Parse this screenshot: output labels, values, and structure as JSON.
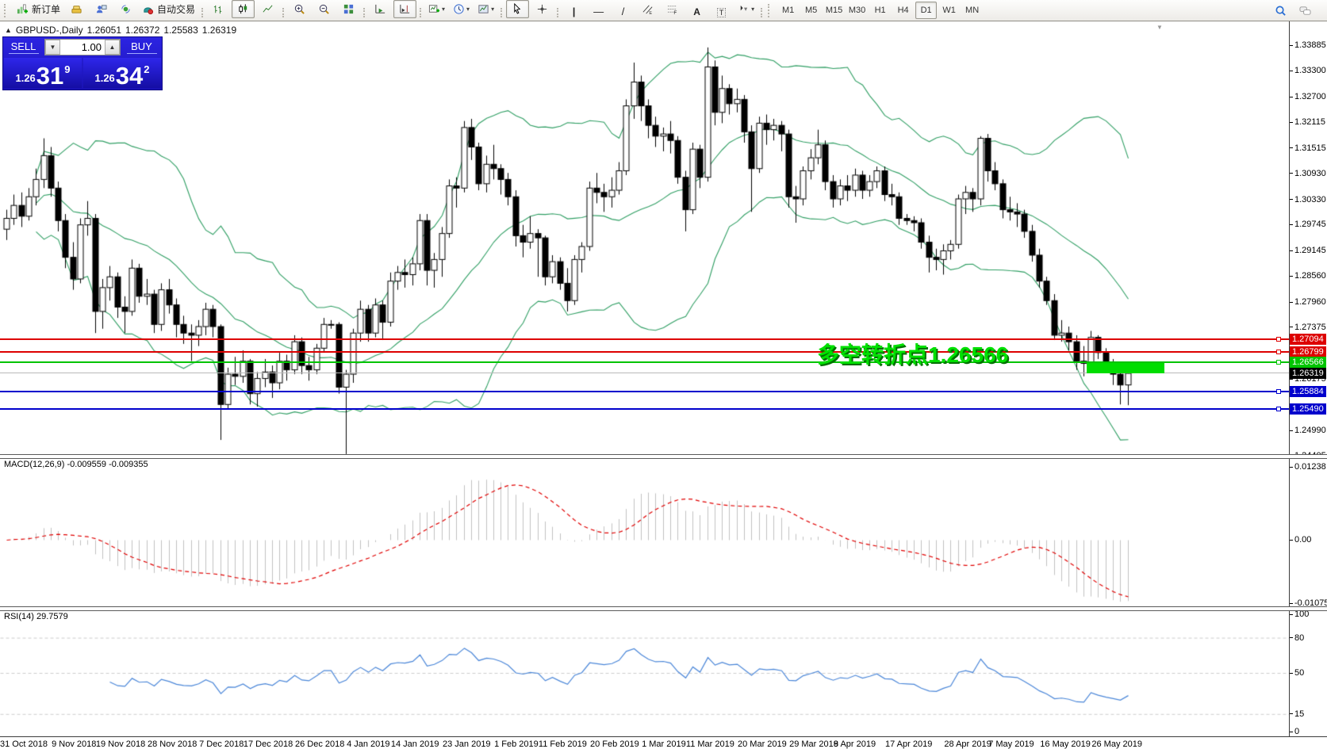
{
  "toolbar": {
    "buttons": [
      {
        "name": "new-order-button",
        "icon": "new-order-icon",
        "label": "新订单"
      },
      {
        "name": "metaeditor-button",
        "icon": "metaeditor-icon"
      },
      {
        "name": "profile-button",
        "icon": "profile-icon"
      },
      {
        "name": "signals-button",
        "icon": "signals-icon"
      },
      {
        "name": "autotrading-button",
        "icon": "autotrading-icon",
        "label": "自动交易"
      },
      {
        "sep": true
      },
      {
        "name": "bar-chart-button",
        "icon": "bar-chart-icon"
      },
      {
        "name": "candlestick-chart-button",
        "icon": "candlestick-icon",
        "active": true
      },
      {
        "name": "line-chart-button",
        "icon": "line-chart-icon"
      },
      {
        "sep": true
      },
      {
        "name": "zoom-in-button",
        "icon": "zoom-in-icon"
      },
      {
        "name": "zoom-out-button",
        "icon": "zoom-out-icon"
      },
      {
        "name": "tile-windows-button",
        "icon": "tile-windows-icon"
      },
      {
        "sep": true
      },
      {
        "name": "auto-scroll-button",
        "icon": "auto-scroll-icon"
      },
      {
        "name": "chart-shift-button",
        "icon": "chart-shift-icon",
        "active": true
      },
      {
        "sep": true
      },
      {
        "name": "new-chart-button",
        "icon": "new-chart-icon",
        "dropdown": true
      },
      {
        "name": "periods-button",
        "icon": "clock-icon",
        "dropdown": true
      },
      {
        "name": "templates-button",
        "icon": "template-icon",
        "dropdown": true
      },
      {
        "sep": true
      },
      {
        "name": "cursor-button",
        "icon": "cursor-icon",
        "active": true
      },
      {
        "name": "crosshair-button",
        "icon": "crosshair-icon"
      },
      {
        "sep": true
      },
      {
        "name": "vertical-line-button",
        "icon": "vline-icon"
      },
      {
        "name": "horizontal-line-button",
        "icon": "hline-icon"
      },
      {
        "name": "trendline-button",
        "icon": "trendline-icon"
      },
      {
        "name": "channel-button",
        "icon": "channel-icon"
      },
      {
        "name": "fibonacci-button",
        "icon": "fibo-icon"
      },
      {
        "name": "text-button",
        "icon": "text-icon"
      },
      {
        "name": "label-button",
        "icon": "label-icon"
      },
      {
        "name": "arrows-button",
        "icon": "arrows-icon",
        "dropdown": true
      },
      {
        "sep": true
      }
    ],
    "timeframes": [
      {
        "label": "M1"
      },
      {
        "label": "M5"
      },
      {
        "label": "M15"
      },
      {
        "label": "M30"
      },
      {
        "label": "H1"
      },
      {
        "label": "H4"
      },
      {
        "label": "D1",
        "active": true
      },
      {
        "label": "W1"
      },
      {
        "label": "MN"
      }
    ],
    "right_buttons": [
      {
        "name": "search-button",
        "icon": "search-icon"
      },
      {
        "name": "chat-button",
        "icon": "chat-icon"
      }
    ]
  },
  "symbol_header": {
    "symbol": "GBPUSD-,Daily",
    "open": "1.26051",
    "high": "1.26372",
    "low": "1.25583",
    "close": "1.26319"
  },
  "trade_panel": {
    "sell_label": "SELL",
    "buy_label": "BUY",
    "volume": "1.00",
    "sell_price": {
      "small": "1.26",
      "big": "31",
      "sup": "9"
    },
    "buy_price": {
      "small": "1.26",
      "big": "34",
      "sup": "2"
    }
  },
  "annotation": {
    "text": "多空转折点1.26566",
    "color": "#00e000"
  },
  "price_axis": {
    "ticks": [
      "1.33885",
      "1.33300",
      "1.32700",
      "1.32115",
      "1.31515",
      "1.30930",
      "1.30330",
      "1.29745",
      "1.29145",
      "1.28560",
      "1.27960",
      "1.27375",
      "1.26175",
      "1.24990",
      "1.24405"
    ],
    "tags": [
      {
        "text": "1.27094",
        "value": 1.27094,
        "bg": "#dd0000"
      },
      {
        "text": "1.26799",
        "value": 1.26799,
        "bg": "#dd0000"
      },
      {
        "text": "1.26566",
        "value": 1.26566,
        "bg": "#00c400"
      },
      {
        "text": "1.26319",
        "value": 1.26319,
        "bg": "#000000"
      },
      {
        "text": "1.25884",
        "value": 1.25884,
        "bg": "#0000cc"
      },
      {
        "text": "1.25490",
        "value": 1.2549,
        "bg": "#0000cc"
      }
    ]
  },
  "levels": [
    {
      "value": 1.27094,
      "color": "#dd0000",
      "thickness": 2,
      "handle": true
    },
    {
      "value": 1.26799,
      "color": "#dd0000",
      "thickness": 2,
      "handle": true
    },
    {
      "value": 1.26566,
      "color": "#00c400",
      "thickness": 2,
      "handle": true
    },
    {
      "value": 1.26319,
      "color": "#b9b9b9",
      "thickness": 1,
      "handle": false,
      "current_price": true
    },
    {
      "value": 1.25884,
      "color": "#0000cc",
      "thickness": 2,
      "handle": true
    },
    {
      "value": 1.2549,
      "color": "#0000cc",
      "thickness": 2,
      "handle": true
    }
  ],
  "highlight_rect": {
    "from_index": 146.5,
    "to_index": 157,
    "price_top": 1.2654,
    "price_bottom": 1.2631,
    "color": "#00dd00"
  },
  "indicators": {
    "macd_label": "MACD(12,26,9) -0.009559 -0.009355",
    "macd_axis": [
      {
        "text": "0.01238",
        "value": 0.01238
      },
      {
        "text": "0.00",
        "value": 0
      },
      {
        "text": "-0.010751",
        "value": -0.010751
      }
    ],
    "rsi_label": "RSI(14) 29.7579",
    "rsi_axis": [
      100,
      80,
      50,
      15,
      0
    ],
    "rsi_level_lines": [
      80,
      50,
      15
    ]
  },
  "time_axis": [
    {
      "label": "31 Oct 2018",
      "index": 0
    },
    {
      "label": "9 Nov 2018",
      "index": 7
    },
    {
      "label": "19 Nov 2018",
      "index": 13
    },
    {
      "label": "28 Nov 2018",
      "index": 20
    },
    {
      "label": "7 Dec 2018",
      "index": 27
    },
    {
      "label": "17 Dec 2018",
      "index": 33
    },
    {
      "label": "26 Dec 2018",
      "index": 40
    },
    {
      "label": "4 Jan 2019",
      "index": 47
    },
    {
      "label": "14 Jan 2019",
      "index": 53
    },
    {
      "label": "23 Jan 2019",
      "index": 60
    },
    {
      "label": "1 Feb 2019",
      "index": 67
    },
    {
      "label": "11 Feb 2019",
      "index": 73
    },
    {
      "label": "20 Feb 2019",
      "index": 80
    },
    {
      "label": "1 Mar 2019",
      "index": 87
    },
    {
      "label": "11 Mar 2019",
      "index": 93
    },
    {
      "label": "20 Mar 2019",
      "index": 100
    },
    {
      "label": "29 Mar 2019",
      "index": 107
    },
    {
      "label": "8 Apr 2019",
      "index": 113
    },
    {
      "label": "17 Apr 2019",
      "index": 120
    },
    {
      "label": "28 Apr 2019",
      "index": 128
    },
    {
      "label": "7 May 2019",
      "index": 134
    },
    {
      "label": "16 May 2019",
      "index": 141
    },
    {
      "label": "26 May 2019",
      "index": 148
    }
  ],
  "chart_data": {
    "type": "candlestick",
    "symbol": "GBPUSD-",
    "timeframe": "Daily",
    "overlays": {
      "bollinger": {
        "period": 20,
        "deviation": 2,
        "color": "#2f9e63"
      }
    },
    "sub_indicators": [
      {
        "type": "macd",
        "fast": 12,
        "slow": 26,
        "signal": 9,
        "histogram_color": "#c0c0c0",
        "signal_color": "#e00000"
      },
      {
        "type": "rsi",
        "period": 14,
        "color": "#4a86d8"
      }
    ],
    "candles": [
      [
        1.2965,
        1.301,
        1.294,
        1.299
      ],
      [
        1.299,
        1.3045,
        1.2975,
        1.302
      ],
      [
        1.302,
        1.305,
        1.297,
        1.2995
      ],
      [
        1.2995,
        1.306,
        1.2985,
        1.304
      ],
      [
        1.304,
        1.3105,
        1.302,
        1.308
      ],
      [
        1.308,
        1.3175,
        1.306,
        1.3135
      ],
      [
        1.3135,
        1.3155,
        1.304,
        1.306
      ],
      [
        1.306,
        1.3075,
        1.296,
        1.2985
      ],
      [
        1.2985,
        1.3,
        1.2875,
        1.29
      ],
      [
        1.29,
        1.2935,
        1.2825,
        1.285
      ],
      [
        1.285,
        1.299,
        1.284,
        1.2975
      ],
      [
        1.2975,
        1.303,
        1.295,
        1.299
      ],
      [
        1.299,
        1.3,
        1.2725,
        1.2775
      ],
      [
        1.2775,
        1.285,
        1.2735,
        1.283
      ],
      [
        1.283,
        1.288,
        1.28,
        1.2855
      ],
      [
        1.2855,
        1.2865,
        1.276,
        1.2785
      ],
      [
        1.2785,
        1.281,
        1.2725,
        1.2775
      ],
      [
        1.2775,
        1.2895,
        1.2765,
        1.2875
      ],
      [
        1.2875,
        1.2885,
        1.2795,
        1.281
      ],
      [
        1.281,
        1.285,
        1.279,
        1.2815
      ],
      [
        1.2815,
        1.2825,
        1.2725,
        1.2745
      ],
      [
        1.2745,
        1.284,
        1.273,
        1.2825
      ],
      [
        1.2825,
        1.285,
        1.277,
        1.279
      ],
      [
        1.279,
        1.2805,
        1.2715,
        1.2745
      ],
      [
        1.2745,
        1.2765,
        1.27,
        1.2725
      ],
      [
        1.2725,
        1.2745,
        1.266,
        1.272
      ],
      [
        1.272,
        1.2755,
        1.2695,
        1.274
      ],
      [
        1.274,
        1.2795,
        1.272,
        1.278
      ],
      [
        1.278,
        1.279,
        1.2715,
        1.274
      ],
      [
        1.274,
        1.2745,
        1.2478,
        1.256
      ],
      [
        1.256,
        1.2645,
        1.255,
        1.263
      ],
      [
        1.263,
        1.267,
        1.2605,
        1.2625
      ],
      [
        1.2625,
        1.2685,
        1.261,
        1.266
      ],
      [
        1.266,
        1.2665,
        1.256,
        1.2585
      ],
      [
        1.2585,
        1.2635,
        1.2555,
        1.262
      ],
      [
        1.262,
        1.2665,
        1.26,
        1.2635
      ],
      [
        1.2635,
        1.265,
        1.2575,
        1.261
      ],
      [
        1.261,
        1.268,
        1.2595,
        1.266
      ],
      [
        1.266,
        1.2675,
        1.2615,
        1.264
      ],
      [
        1.264,
        1.272,
        1.263,
        1.2705
      ],
      [
        1.2705,
        1.2715,
        1.263,
        1.265
      ],
      [
        1.265,
        1.267,
        1.2615,
        1.264
      ],
      [
        1.264,
        1.27,
        1.263,
        1.269
      ],
      [
        1.269,
        1.276,
        1.268,
        1.2745
      ],
      [
        1.2745,
        1.2755,
        1.2735,
        1.2745
      ],
      [
        1.2745,
        1.275,
        1.2585,
        1.26
      ],
      [
        1.26,
        1.264,
        1.2445,
        1.263
      ],
      [
        1.263,
        1.2735,
        1.261,
        1.2725
      ],
      [
        1.2725,
        1.28,
        1.2705,
        1.278
      ],
      [
        1.278,
        1.279,
        1.2705,
        1.2725
      ],
      [
        1.2725,
        1.2805,
        1.2715,
        1.279
      ],
      [
        1.279,
        1.28,
        1.271,
        1.275
      ],
      [
        1.275,
        1.2865,
        1.274,
        1.2845
      ],
      [
        1.2845,
        1.288,
        1.2825,
        1.2865
      ],
      [
        1.2865,
        1.2895,
        1.283,
        1.286
      ],
      [
        1.286,
        1.29,
        1.2835,
        1.2885
      ],
      [
        1.2885,
        1.3,
        1.287,
        1.2985
      ],
      [
        1.2985,
        1.3,
        1.2835,
        1.287
      ],
      [
        1.287,
        1.291,
        1.283,
        1.2895
      ],
      [
        1.2895,
        1.297,
        1.2855,
        1.2955
      ],
      [
        1.2955,
        1.308,
        1.2945,
        1.3065
      ],
      [
        1.3065,
        1.3085,
        1.3015,
        1.306
      ],
      [
        1.306,
        1.3215,
        1.305,
        1.32
      ],
      [
        1.32,
        1.322,
        1.3125,
        1.3155
      ],
      [
        1.3155,
        1.3165,
        1.3055,
        1.307
      ],
      [
        1.307,
        1.3135,
        1.305,
        1.3115
      ],
      [
        1.3115,
        1.316,
        1.308,
        1.3105
      ],
      [
        1.3105,
        1.3115,
        1.3045,
        1.308
      ],
      [
        1.308,
        1.3095,
        1.302,
        1.304
      ],
      [
        1.304,
        1.3055,
        1.2925,
        1.295
      ],
      [
        1.295,
        1.2975,
        1.29,
        1.2935
      ],
      [
        1.2935,
        1.2995,
        1.292,
        1.2955
      ],
      [
        1.2955,
        1.2965,
        1.2855,
        1.2945
      ],
      [
        1.2945,
        1.295,
        1.2835,
        1.2855
      ],
      [
        1.2855,
        1.2905,
        1.284,
        1.289
      ],
      [
        1.289,
        1.29,
        1.2825,
        1.284
      ],
      [
        1.284,
        1.2875,
        1.2775,
        1.28
      ],
      [
        1.28,
        1.2905,
        1.279,
        1.2895
      ],
      [
        1.2895,
        1.2935,
        1.2865,
        1.2925
      ],
      [
        1.2925,
        1.3075,
        1.2915,
        1.306
      ],
      [
        1.306,
        1.3095,
        1.3025,
        1.305
      ],
      [
        1.305,
        1.307,
        1.3005,
        1.304
      ],
      [
        1.304,
        1.3085,
        1.3015,
        1.3055
      ],
      [
        1.3055,
        1.312,
        1.3045,
        1.31
      ],
      [
        1.31,
        1.3265,
        1.309,
        1.325
      ],
      [
        1.325,
        1.335,
        1.322,
        1.3305
      ],
      [
        1.3305,
        1.332,
        1.3215,
        1.325
      ],
      [
        1.325,
        1.3265,
        1.3175,
        1.3205
      ],
      [
        1.3205,
        1.3225,
        1.3155,
        1.318
      ],
      [
        1.318,
        1.32,
        1.3145,
        1.3185
      ],
      [
        1.3185,
        1.3215,
        1.314,
        1.317
      ],
      [
        1.317,
        1.318,
        1.307,
        1.3085
      ],
      [
        1.3085,
        1.31,
        1.296,
        1.301
      ],
      [
        1.301,
        1.3165,
        1.3,
        1.315
      ],
      [
        1.315,
        1.316,
        1.306,
        1.3085
      ],
      [
        1.3085,
        1.3385,
        1.3075,
        1.334
      ],
      [
        1.334,
        1.3355,
        1.3205,
        1.3235
      ],
      [
        1.3235,
        1.332,
        1.321,
        1.329
      ],
      [
        1.329,
        1.33,
        1.323,
        1.3255
      ],
      [
        1.3255,
        1.329,
        1.3235,
        1.3265
      ],
      [
        1.3265,
        1.3275,
        1.3165,
        1.319
      ],
      [
        1.319,
        1.3205,
        1.3005,
        1.3105
      ],
      [
        1.3105,
        1.3225,
        1.3095,
        1.321
      ],
      [
        1.321,
        1.323,
        1.316,
        1.3195
      ],
      [
        1.3195,
        1.322,
        1.317,
        1.3205
      ],
      [
        1.3205,
        1.3215,
        1.3145,
        1.3185
      ],
      [
        1.3185,
        1.3195,
        1.3015,
        1.304
      ],
      [
        1.304,
        1.3065,
        1.298,
        1.3035
      ],
      [
        1.3035,
        1.311,
        1.302,
        1.31
      ],
      [
        1.31,
        1.315,
        1.308,
        1.313
      ],
      [
        1.313,
        1.3195,
        1.3115,
        1.316
      ],
      [
        1.316,
        1.317,
        1.3055,
        1.3075
      ],
      [
        1.3075,
        1.309,
        1.3015,
        1.3035
      ],
      [
        1.3035,
        1.308,
        1.302,
        1.3065
      ],
      [
        1.3065,
        1.309,
        1.303,
        1.3055
      ],
      [
        1.3055,
        1.3105,
        1.304,
        1.309
      ],
      [
        1.309,
        1.31,
        1.3035,
        1.3055
      ],
      [
        1.3055,
        1.309,
        1.304,
        1.3075
      ],
      [
        1.3075,
        1.311,
        1.306,
        1.31
      ],
      [
        1.31,
        1.311,
        1.303,
        1.3045
      ],
      [
        1.3045,
        1.307,
        1.302,
        1.304
      ],
      [
        1.304,
        1.305,
        1.2975,
        1.299
      ],
      [
        1.299,
        1.3,
        1.2975,
        1.2985
      ],
      [
        1.2985,
        1.2995,
        1.296,
        1.298
      ],
      [
        1.298,
        1.299,
        1.292,
        1.2935
      ],
      [
        1.2935,
        1.295,
        1.2865,
        1.29
      ],
      [
        1.29,
        1.292,
        1.287,
        1.2895
      ],
      [
        1.2895,
        1.293,
        1.286,
        1.2915
      ],
      [
        1.2915,
        1.294,
        1.2895,
        1.293
      ],
      [
        1.293,
        1.3045,
        1.292,
        1.3035
      ],
      [
        1.3035,
        1.3065,
        1.3,
        1.305
      ],
      [
        1.305,
        1.306,
        1.3005,
        1.3035
      ],
      [
        1.3035,
        1.318,
        1.302,
        1.3175
      ],
      [
        1.3175,
        1.3185,
        1.3075,
        1.31
      ],
      [
        1.31,
        1.312,
        1.3055,
        1.307
      ],
      [
        1.307,
        1.308,
        1.299,
        1.301
      ],
      [
        1.301,
        1.304,
        1.2985,
        1.3005
      ],
      [
        1.3005,
        1.3025,
        1.297,
        1.3
      ],
      [
        1.3,
        1.301,
        1.2945,
        1.296
      ],
      [
        1.296,
        1.2975,
        1.289,
        1.2905
      ],
      [
        1.2905,
        1.292,
        1.283,
        1.2845
      ],
      [
        1.2845,
        1.2855,
        1.279,
        1.28
      ],
      [
        1.28,
        1.2815,
        1.271,
        1.272
      ],
      [
        1.272,
        1.2755,
        1.2705,
        1.2725
      ],
      [
        1.2725,
        1.274,
        1.2685,
        1.2705
      ],
      [
        1.2705,
        1.272,
        1.264,
        1.266
      ],
      [
        1.266,
        1.2695,
        1.2625,
        1.2655
      ],
      [
        1.2655,
        1.273,
        1.2645,
        1.2715
      ],
      [
        1.2715,
        1.272,
        1.2665,
        1.268
      ],
      [
        1.268,
        1.269,
        1.264,
        1.265
      ],
      [
        1.265,
        1.2665,
        1.2605,
        1.263
      ],
      [
        1.263,
        1.2645,
        1.256,
        1.2605
      ],
      [
        1.26051,
        1.26372,
        1.25583,
        1.26319
      ]
    ]
  }
}
